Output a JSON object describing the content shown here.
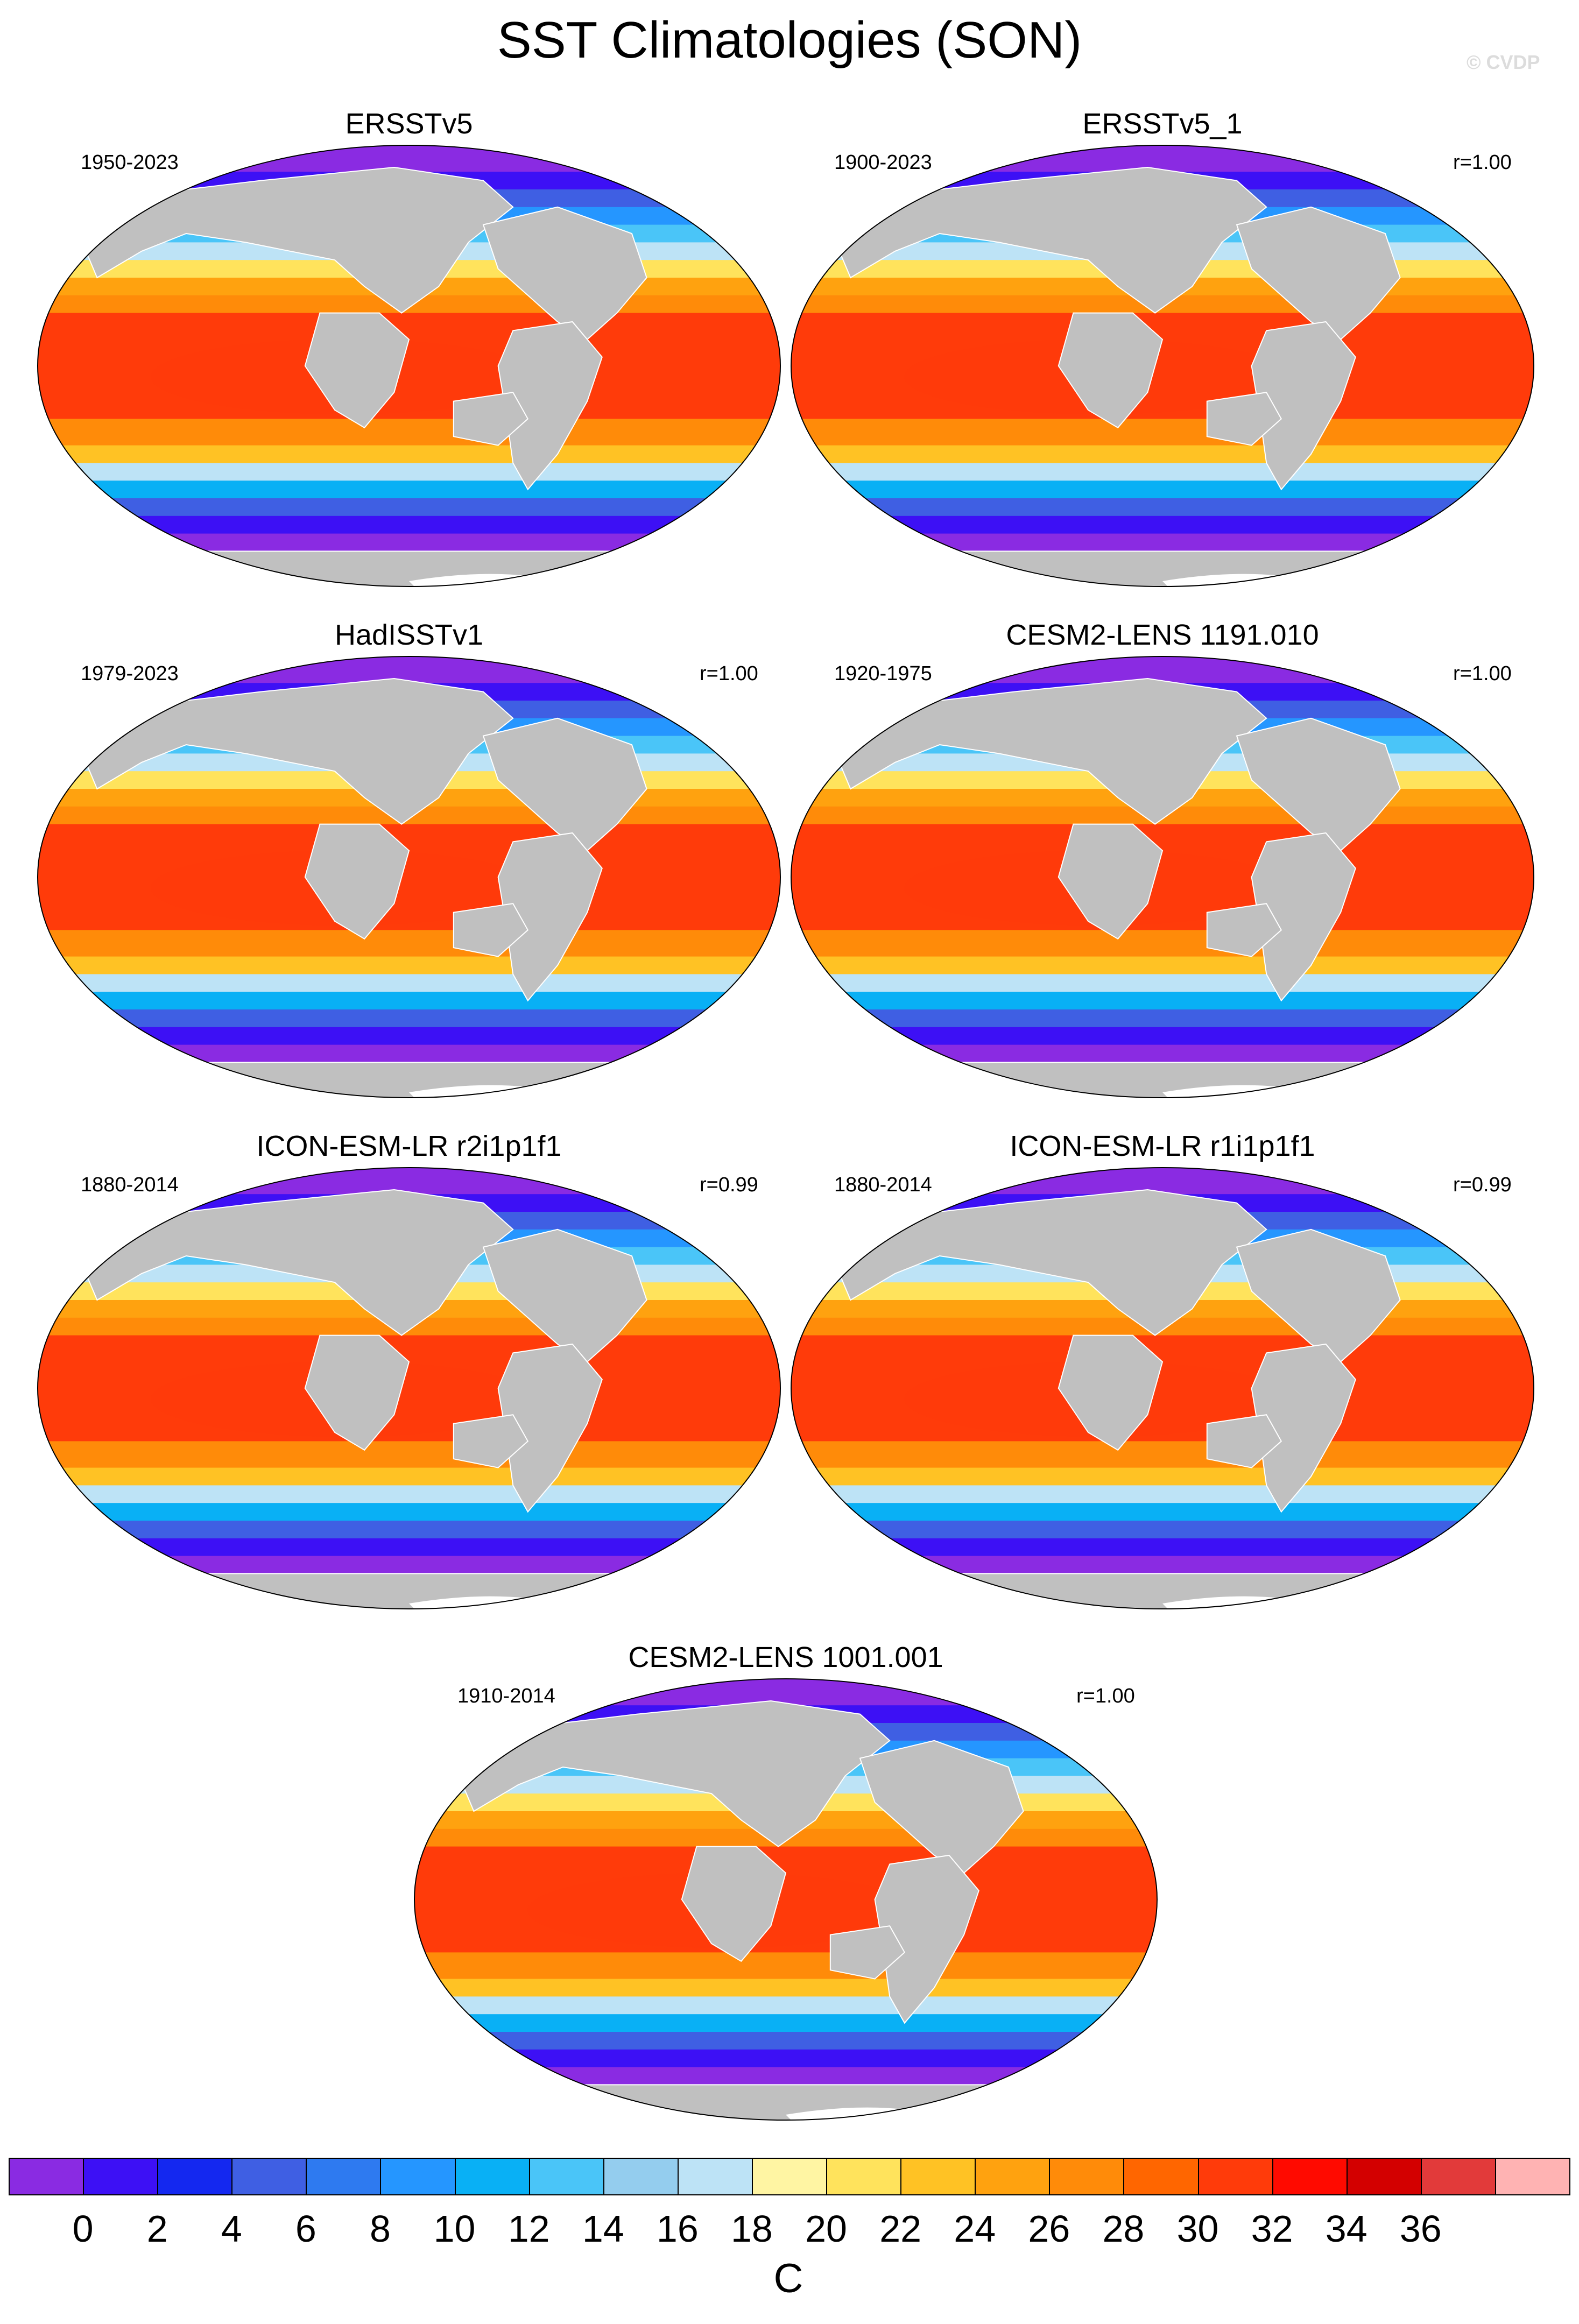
{
  "figure": {
    "title": "SST Climatologies (SON)",
    "watermark": "© CVDP"
  },
  "panels": [
    {
      "title": "ERSSTv5",
      "period": "1950-2023",
      "corr": ""
    },
    {
      "title": "ERSSTv5_1",
      "period": "1900-2023",
      "corr": "r=1.00"
    },
    {
      "title": "HadISSTv1",
      "period": "1979-2023",
      "corr": "r=1.00"
    },
    {
      "title": "CESM2-LENS 1191.010",
      "period": "1920-1975",
      "corr": "r=1.00"
    },
    {
      "title": "ICON-ESM-LR r2i1p1f1",
      "period": "1880-2014",
      "corr": "r=0.99"
    },
    {
      "title": "ICON-ESM-LR r1i1p1f1",
      "period": "1880-2014",
      "corr": "r=0.99"
    },
    {
      "title": "CESM2-LENS 1001.001",
      "period": "1910-2014",
      "corr": "r=1.00"
    }
  ],
  "colorbar": {
    "unit": "C",
    "tick_labels": [
      "0",
      "2",
      "4",
      "6",
      "8",
      "10",
      "12",
      "14",
      "16",
      "18",
      "20",
      "22",
      "24",
      "26",
      "28",
      "30",
      "32",
      "34",
      "36"
    ],
    "colors": [
      "#8a2be2",
      "#3d10f5",
      "#1428f0",
      "#3f5fe3",
      "#2e7af0",
      "#2596ff",
      "#09b0f5",
      "#4ac5f8",
      "#94cdee",
      "#bde3f6",
      "#fff5a3",
      "#ffe35c",
      "#ffc224",
      "#ffa20f",
      "#ff8b09",
      "#ff6600",
      "#ff3b0a",
      "#ff0a00",
      "#d30000",
      "#e23a3a",
      "#ffb3b3"
    ]
  },
  "map_style": {
    "land": "#c0c0c0",
    "sea_ice": "#ffffff",
    "outline": "#000000",
    "projection": "robinson-like"
  }
}
